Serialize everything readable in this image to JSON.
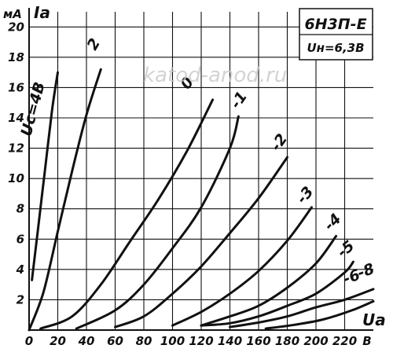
{
  "chart_data": {
    "type": "line",
    "title": "",
    "tube": "6Н3П-Е",
    "heater": "Uн=6,3В",
    "watermark": "katod-anod.ru",
    "xlabel": "Ua",
    "ylabel": "Ia",
    "yunit": "мА",
    "xunit": "В",
    "xlim": [
      0,
      240
    ],
    "ylim": [
      0,
      21
    ],
    "grid": true,
    "xticks": [
      {
        "v": 0,
        "label": "0"
      },
      {
        "v": 20,
        "label": "20"
      },
      {
        "v": 40,
        "label": "40"
      },
      {
        "v": 60,
        "label": "60"
      },
      {
        "v": 80,
        "label": "80"
      },
      {
        "v": 100,
        "label": "100"
      },
      {
        "v": 120,
        "label": "120"
      },
      {
        "v": 140,
        "label": "140"
      },
      {
        "v": 160,
        "label": "160"
      },
      {
        "v": 180,
        "label": "180"
      },
      {
        "v": 200,
        "label": "200"
      },
      {
        "v": 220,
        "label": "220"
      },
      {
        "v": 240,
        "label": "В"
      }
    ],
    "yticks": [
      {
        "v": 2,
        "label": "2"
      },
      {
        "v": 4,
        "label": "4"
      },
      {
        "v": 6,
        "label": "6"
      },
      {
        "v": 8,
        "label": "8"
      },
      {
        "v": 10,
        "label": "10"
      },
      {
        "v": 12,
        "label": "12"
      },
      {
        "v": 14,
        "label": "14"
      },
      {
        "v": 16,
        "label": "16"
      },
      {
        "v": 18,
        "label": "18"
      },
      {
        "v": 20,
        "label": "20"
      }
    ],
    "series": [
      {
        "name": "Uc=4В",
        "x": [
          2,
          6,
          11,
          16,
          20
        ],
        "y": [
          3.3,
          6.5,
          10.5,
          14.5,
          17
        ],
        "label_at": [
          6,
          14.5
        ],
        "label_rot": -75
      },
      {
        "name": "2",
        "x": [
          0,
          10,
          20,
          30,
          40,
          50
        ],
        "y": [
          0,
          2.5,
          6.5,
          10.5,
          14.2,
          17.2
        ],
        "label_at": [
          48,
          18.7
        ],
        "label_rot": -60
      },
      {
        "name": "0",
        "x": [
          8,
          30,
          50,
          70,
          90,
          110,
          128
        ],
        "y": [
          0.1,
          0.9,
          3.0,
          5.8,
          8.6,
          11.8,
          15.2
        ],
        "label_at": [
          113,
          16.1
        ],
        "label_rot": -55
      },
      {
        "name": "-1",
        "x": [
          33,
          60,
          80,
          100,
          120,
          140,
          146
        ],
        "y": [
          0.1,
          1.3,
          3.0,
          5.4,
          8.1,
          12.0,
          14.1
        ],
        "label_at": [
          149,
          15.0
        ],
        "label_rot": -55
      },
      {
        "name": "-2",
        "x": [
          60,
          80,
          100,
          120,
          140,
          160,
          180
        ],
        "y": [
          0.2,
          0.9,
          2.4,
          4.2,
          6.4,
          8.7,
          11.4
        ],
        "label_at": [
          177,
          12.2
        ],
        "label_rot": -55
      },
      {
        "name": "-3",
        "x": [
          100,
          120,
          140,
          160,
          180,
          197
        ],
        "y": [
          0.3,
          1.2,
          2.4,
          3.9,
          5.9,
          8.1
        ],
        "label_at": [
          195,
          8.7
        ],
        "label_rot": -50
      },
      {
        "name": "-4",
        "x": [
          120,
          140,
          160,
          180,
          200,
          214
        ],
        "y": [
          0.3,
          0.9,
          1.6,
          2.8,
          4.4,
          6.2
        ],
        "label_at": [
          214,
          6.9
        ],
        "label_rot": -45
      },
      {
        "name": "-5",
        "x": [
          120,
          140,
          160,
          180,
          200,
          220,
          226
        ],
        "y": [
          0.3,
          0.45,
          0.9,
          1.6,
          2.4,
          3.8,
          4.5
        ],
        "label_at": [
          223,
          5.1
        ],
        "label_rot": -40
      },
      {
        "name": "-6",
        "x": [
          140,
          160,
          180,
          200,
          220,
          240
        ],
        "y": [
          0.2,
          0.5,
          0.9,
          1.5,
          2.0,
          2.7
        ],
        "label_at": [
          226,
          3.2
        ],
        "label_rot": -20
      },
      {
        "name": "-8",
        "x": [
          165,
          185,
          205,
          225,
          240
        ],
        "y": [
          0.1,
          0.35,
          0.7,
          1.3,
          1.9
        ],
        "label_at": [
          236,
          3.6
        ],
        "label_rot": -20
      }
    ]
  }
}
